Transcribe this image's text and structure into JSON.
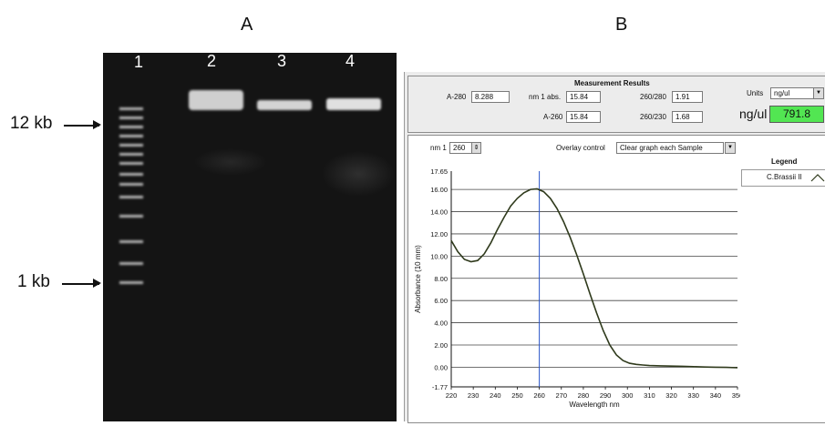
{
  "panels": {
    "a": "A",
    "b": "B"
  },
  "gel": {
    "lanes": [
      "1",
      "2",
      "3",
      "4"
    ],
    "markers": [
      {
        "label": "12 kb"
      },
      {
        "label": "1 kb"
      }
    ]
  },
  "measurement": {
    "title": "Measurement Results",
    "a280_label": "A-280",
    "a280_value": "8.288",
    "nm1abs_label": "nm 1 abs.",
    "nm1abs_value": "15.84",
    "a260_label": "A-260",
    "a260_value": "15.84",
    "r260_280_label": "260/280",
    "r260_280_value": "1.91",
    "r260_230_label": "260/230",
    "r260_230_value": "1.68",
    "units_label": "Units",
    "units_value": "ng/ul",
    "conc_label": "ng/ul",
    "conc_value": "791.8",
    "conc_color": "#52e652"
  },
  "graph_controls": {
    "nm1_label": "nm 1",
    "nm1_value": "260",
    "overlay_label": "Overlay control",
    "overlay_value": "Clear graph each Sample",
    "legend_title": "Legend",
    "legend_entry": "C.Brassii II"
  },
  "chart_data": {
    "type": "line",
    "xlabel": "Wavelength nm",
    "ylabel": "Absorbance (10 mm)",
    "xlim": [
      220,
      350
    ],
    "ylim": [
      -1.77,
      17.65
    ],
    "x_ticks": [
      220,
      230,
      240,
      250,
      260,
      270,
      280,
      290,
      300,
      310,
      320,
      330,
      340,
      350
    ],
    "y_ticks": [
      "17.65",
      "16.00",
      "14.00",
      "12.00",
      "10.00",
      "8.00",
      "6.00",
      "4.00",
      "2.00",
      "0.00",
      "-1.77"
    ],
    "y_tick_values": [
      17.65,
      16,
      14,
      12,
      10,
      8,
      6,
      4,
      2,
      0,
      -1.77
    ],
    "marker_line_x": 260,
    "series": [
      {
        "name": "C.Brassii II",
        "color": "#2f3a1c",
        "x": [
          220,
          223,
          226,
          229,
          232,
          235,
          238,
          241,
          244,
          247,
          250,
          253,
          256,
          259,
          262,
          265,
          268,
          271,
          274,
          277,
          280,
          283,
          286,
          289,
          292,
          295,
          298,
          301,
          304,
          307,
          310,
          315,
          320,
          325,
          330,
          335,
          340,
          345,
          350
        ],
        "y": [
          11.4,
          10.4,
          9.7,
          9.5,
          9.6,
          10.2,
          11.2,
          12.4,
          13.5,
          14.5,
          15.2,
          15.7,
          16.0,
          16.05,
          15.8,
          15.2,
          14.3,
          13.1,
          11.7,
          10.1,
          8.4,
          6.6,
          4.9,
          3.3,
          2.0,
          1.1,
          0.6,
          0.35,
          0.25,
          0.2,
          0.15,
          0.12,
          0.1,
          0.08,
          0.05,
          0.02,
          0.0,
          -0.02,
          -0.05
        ]
      }
    ]
  }
}
